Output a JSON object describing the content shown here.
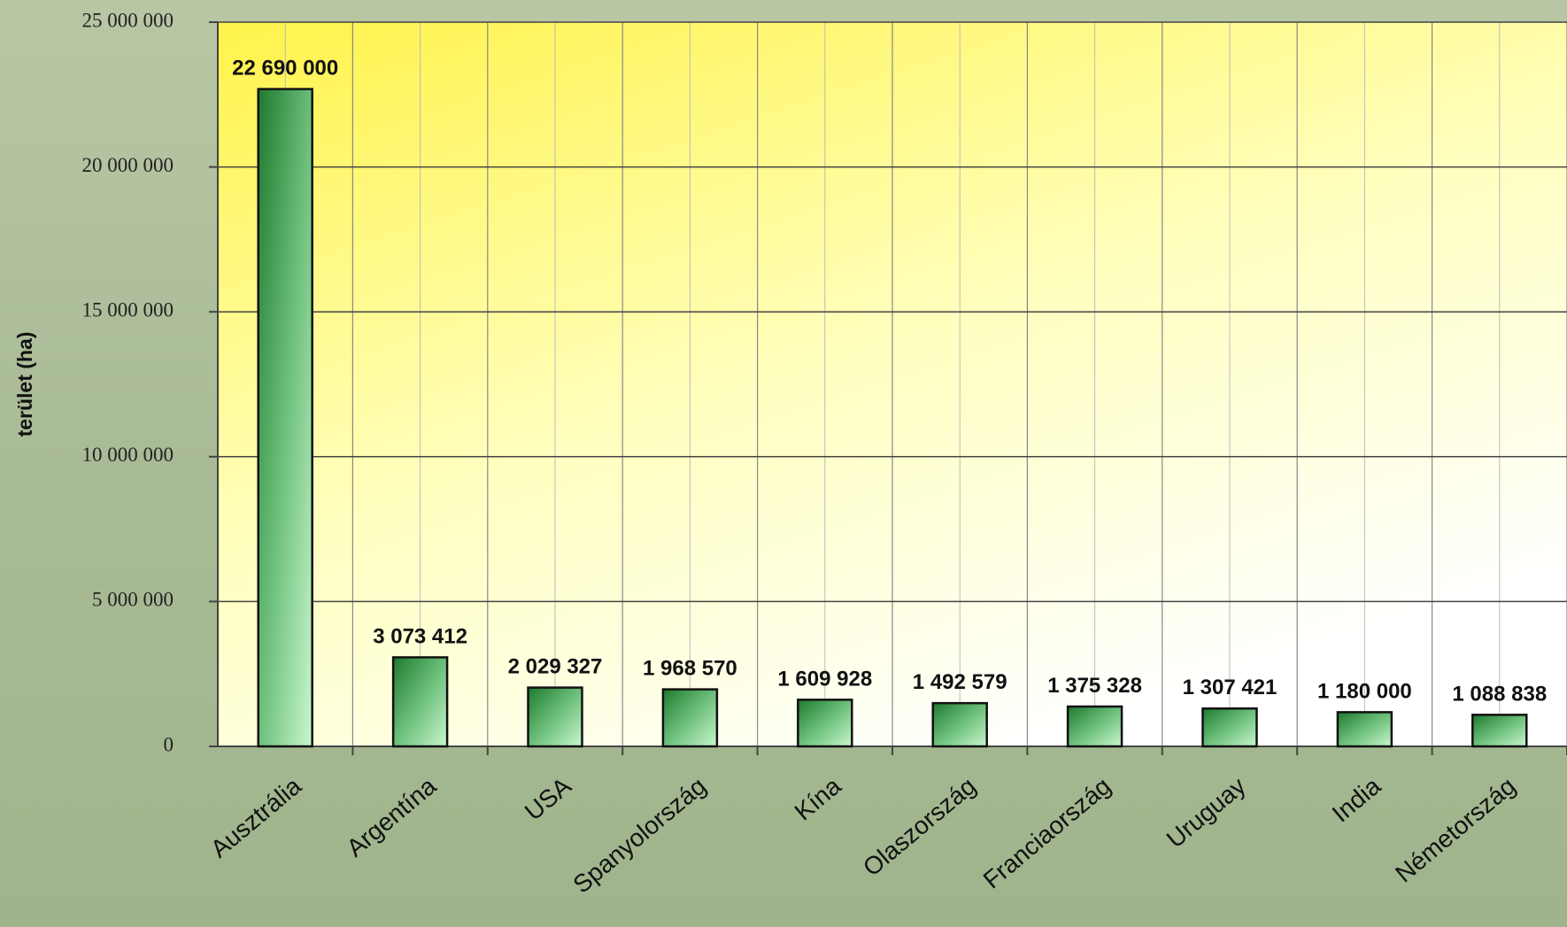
{
  "chart_data": {
    "type": "bar",
    "y_label": "terület (ha)",
    "categories": [
      "Ausztrália",
      "Argentína",
      "USA",
      "Spanyolország",
      "Kína",
      "Olaszország",
      "Franciaország",
      "Uruguay",
      "India",
      "Németország"
    ],
    "values": [
      22690000,
      3073412,
      2029327,
      1968570,
      1609928,
      1492579,
      1375328,
      1307421,
      1180000,
      1088838
    ],
    "value_labels": [
      "22 690 000",
      "3 073 412",
      "2 029 327",
      "1 968 570",
      "1 609 928",
      "1 492 579",
      "1 375 328",
      "1 307 421",
      "1 180 000",
      "1 088 838"
    ],
    "color": "#1e7a2e",
    "ylim": [
      0,
      25000000
    ],
    "yticks": [
      {
        "value": 0,
        "label": "0"
      },
      {
        "value": 5000000,
        "label": "5 000 000"
      },
      {
        "value": 10000000,
        "label": "10 000 000"
      },
      {
        "value": 15000000,
        "label": "15 000 000"
      },
      {
        "value": 20000000,
        "label": "20 000 000"
      },
      {
        "value": 25000000,
        "label": "25 000 000"
      }
    ],
    "grid": true
  }
}
